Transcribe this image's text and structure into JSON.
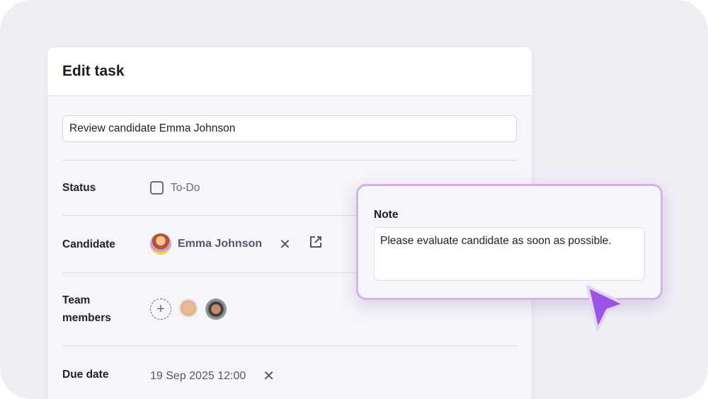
{
  "dialog": {
    "title": "Edit task",
    "task_name": "Review candidate Emma Johnson"
  },
  "fields": {
    "status": {
      "label": "Status",
      "value": "To-Do",
      "checked": false
    },
    "candidate": {
      "label": "Candidate",
      "name": "Emma Johnson"
    },
    "team": {
      "label_line1": "Team",
      "label_line2": "members",
      "members": [
        "member-1",
        "member-2"
      ]
    },
    "due": {
      "label": "Due date",
      "value": "19 Sep 2025 12:00"
    }
  },
  "note": {
    "label": "Note",
    "value": "Please evaluate candidate as soon as possible."
  },
  "colors": {
    "accent": "#9b55e6",
    "popup_border": "#d5b2ea"
  }
}
